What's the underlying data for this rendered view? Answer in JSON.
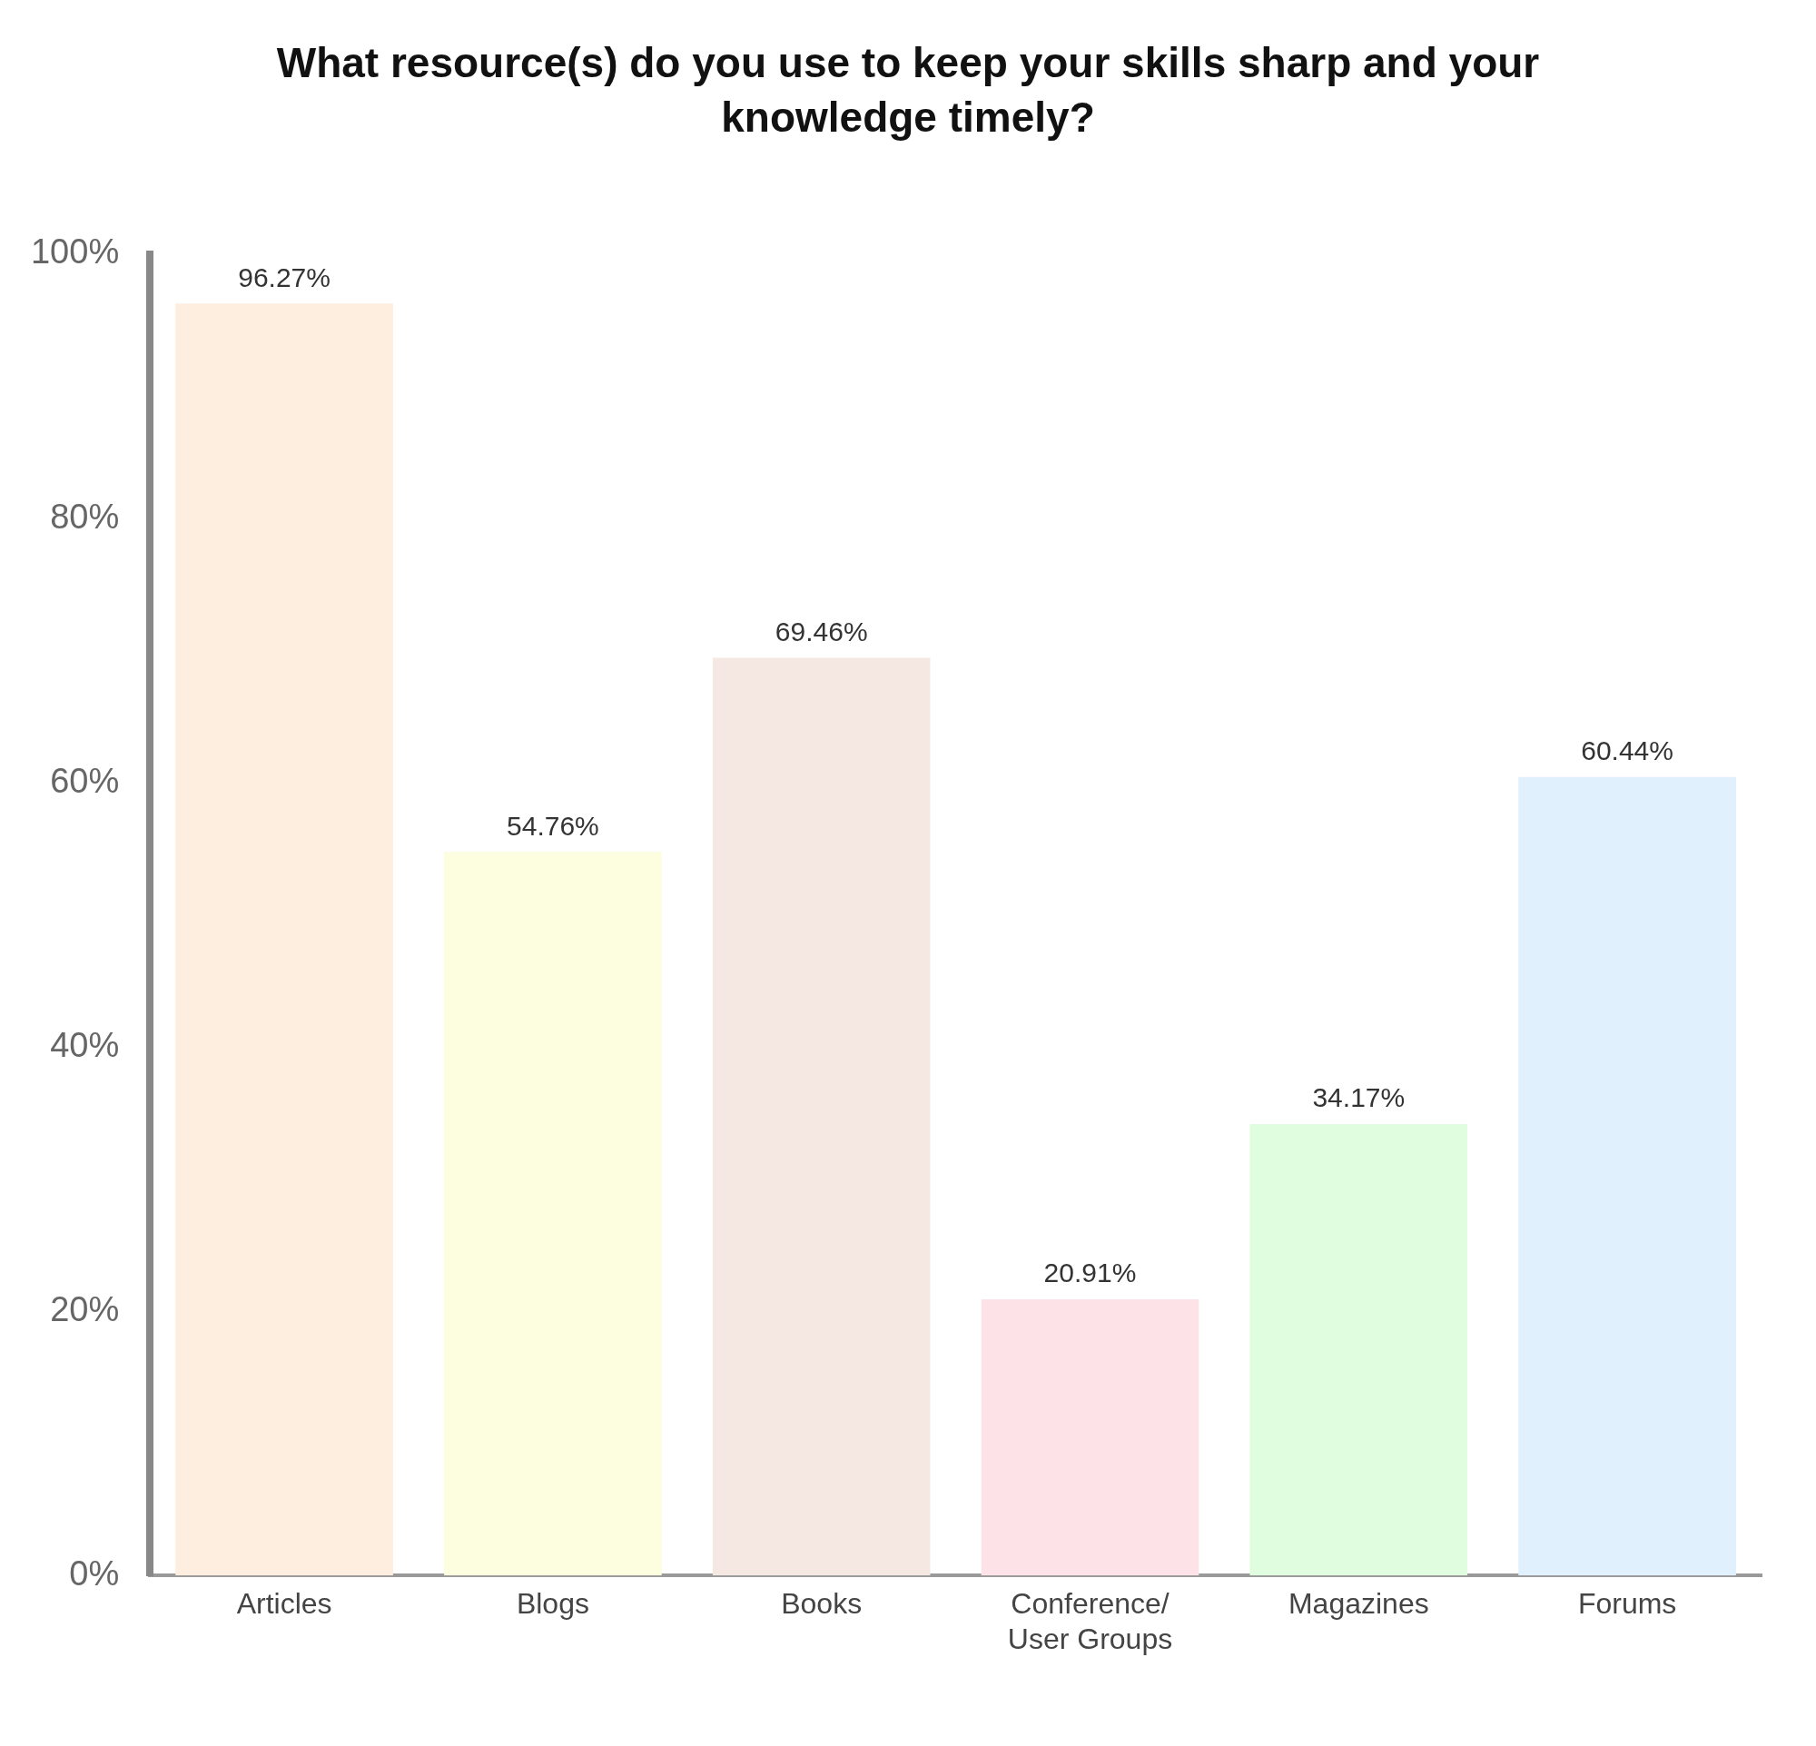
{
  "chart_data": {
    "type": "bar",
    "title": "What resource(s) do you use to keep your skills sharp and your knowledge timely?",
    "categories": [
      "Articles",
      "Blogs",
      "Books",
      "Conference/User Groups",
      "Magazines",
      "Forums"
    ],
    "values": [
      96.27,
      54.76,
      69.46,
      20.91,
      34.17,
      60.44
    ],
    "value_labels": [
      "96.27%",
      "54.76%",
      "69.46%",
      "20.91%",
      "34.17%",
      "60.44%"
    ],
    "colors": [
      "#fdeee0",
      "#fdfde0",
      "#f5e8e3",
      "#fde3e8",
      "#e0fde0",
      "#e0f0fd"
    ],
    "ylim": [
      0,
      100
    ],
    "yticks": [
      {
        "value": 0,
        "label": "0%"
      },
      {
        "value": 20,
        "label": "20%"
      },
      {
        "value": 40,
        "label": "40%"
      },
      {
        "value": 60,
        "label": "60%"
      },
      {
        "value": 80,
        "label": "80%"
      },
      {
        "value": 100,
        "label": "100%"
      }
    ],
    "grid": false,
    "legend": false
  }
}
